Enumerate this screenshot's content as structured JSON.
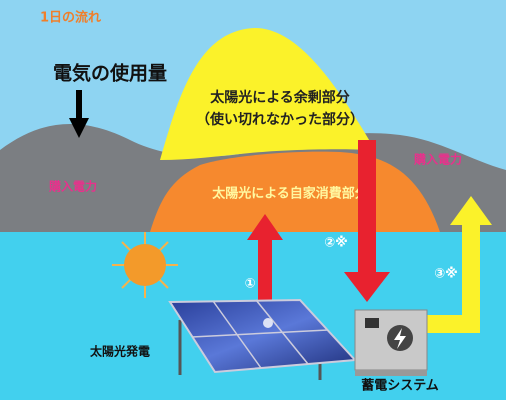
{
  "header": {
    "title": "1日の流れ"
  },
  "labels": {
    "usage": "電気の使用量",
    "surplus": [
      "太陽光による余剰部分",
      "（使い切れなかった部分）"
    ],
    "purchase_left": "購入電力",
    "purchase_right": "購入電力",
    "self_consumption": "太陽光による自家消費部分",
    "flow_1": "①",
    "flow_2": "②※",
    "flow_3": "③※",
    "solar": "太陽光発電",
    "storage": "蓄電システム"
  }
}
